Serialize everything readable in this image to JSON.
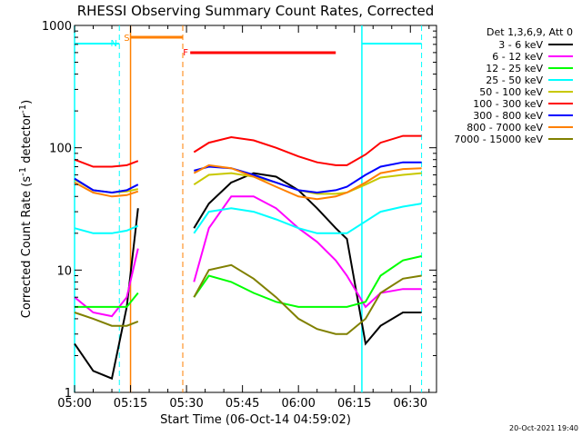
{
  "chart_data": {
    "type": "line",
    "title": "RHESSI Observing Summary Count Rates, Corrected",
    "xlabel": "Start Time (06-Oct-14 04:59:02)",
    "ylabel": "Corrected Count Rate (s^-1 detector^-1)",
    "y_scale": "log",
    "ylim": [
      1,
      1000
    ],
    "xlim": [
      "05:00",
      "06:37"
    ],
    "x_ticks": [
      "05:00",
      "05:15",
      "05:30",
      "05:45",
      "06:00",
      "06:15",
      "06:30"
    ],
    "y_ticks": [
      "1",
      "10",
      "100",
      "1000"
    ],
    "legend_header": "Det 1,3,6,9, Att 0",
    "legend_position": "right",
    "timestamp": "20-Oct-2021 19:40",
    "flags": [
      {
        "label": "N",
        "color": "#00ffff"
      },
      {
        "label": "S",
        "color": "#ff8000"
      },
      {
        "label": "F",
        "color": "#ff0000"
      }
    ],
    "series": [
      {
        "name": "3 - 6 keV",
        "color": "#000000",
        "x": [
          "05:00",
          "05:05",
          "05:10",
          "05:14",
          "05:17",
          "05:30",
          "05:32",
          "05:36",
          "05:42",
          "05:48",
          "05:54",
          "06:00",
          "06:05",
          "06:10",
          "06:13",
          "06:18",
          "06:22",
          "06:28",
          "06:33"
        ],
        "y": [
          2.5,
          1.5,
          1.3,
          5,
          32,
          null,
          22,
          35,
          52,
          62,
          58,
          45,
          32,
          22,
          18,
          2.5,
          3.5,
          4.5,
          4.5
        ]
      },
      {
        "name": "6 - 12 keV",
        "color": "#ff00ff",
        "x": [
          "05:00",
          "05:05",
          "05:10",
          "05:14",
          "05:17",
          "05:30",
          "05:32",
          "05:36",
          "05:42",
          "05:48",
          "05:54",
          "06:00",
          "06:05",
          "06:10",
          "06:13",
          "06:18",
          "06:22",
          "06:28",
          "06:33"
        ],
        "y": [
          6,
          4.5,
          4.2,
          6,
          15,
          null,
          8,
          22,
          40,
          40,
          32,
          22,
          17,
          12,
          9,
          5,
          6.5,
          7,
          7
        ]
      },
      {
        "name": "12 - 25 keV",
        "color": "#00ff00",
        "x": [
          "05:00",
          "05:05",
          "05:10",
          "05:14",
          "05:17",
          "05:30",
          "05:32",
          "05:36",
          "05:42",
          "05:48",
          "05:54",
          "06:00",
          "06:05",
          "06:10",
          "06:13",
          "06:18",
          "06:22",
          "06:28",
          "06:33"
        ],
        "y": [
          5,
          5,
          5,
          5,
          6.5,
          null,
          6,
          9,
          8,
          6.5,
          5.5,
          5,
          5,
          5,
          5,
          5.5,
          9,
          12,
          13
        ]
      },
      {
        "name": "25 - 50 keV",
        "color": "#00ffff",
        "x": [
          "05:00",
          "05:05",
          "05:10",
          "05:14",
          "05:17",
          "05:30",
          "05:32",
          "05:36",
          "05:42",
          "05:48",
          "05:54",
          "06:00",
          "06:05",
          "06:10",
          "06:13",
          "06:18",
          "06:22",
          "06:28",
          "06:33"
        ],
        "y": [
          22,
          20,
          20,
          21,
          23,
          null,
          20,
          30,
          32,
          30,
          26,
          22,
          20,
          20,
          20,
          25,
          30,
          33,
          35
        ]
      },
      {
        "name": "50 - 100 keV",
        "color": "#c8c800",
        "x": [
          "05:00",
          "05:05",
          "05:10",
          "05:14",
          "05:17",
          "05:30",
          "05:32",
          "05:36",
          "05:42",
          "05:48",
          "05:54",
          "06:00",
          "06:05",
          "06:10",
          "06:13",
          "06:18",
          "06:22",
          "06:28",
          "06:33"
        ],
        "y": [
          55,
          45,
          43,
          44,
          46,
          null,
          50,
          60,
          62,
          58,
          52,
          45,
          42,
          42,
          43,
          50,
          57,
          60,
          62
        ]
      },
      {
        "name": "100 - 300 keV",
        "color": "#ff0000",
        "x": [
          "05:00",
          "05:05",
          "05:10",
          "05:14",
          "05:17",
          "05:30",
          "05:32",
          "05:36",
          "05:42",
          "05:48",
          "05:54",
          "06:00",
          "06:05",
          "06:10",
          "06:13",
          "06:18",
          "06:22",
          "06:28",
          "06:33"
        ],
        "y": [
          80,
          70,
          70,
          72,
          78,
          null,
          92,
          110,
          122,
          115,
          100,
          85,
          76,
          72,
          72,
          88,
          110,
          125,
          125
        ]
      },
      {
        "name": "300 - 800 keV",
        "color": "#0000ff",
        "x": [
          "05:00",
          "05:05",
          "05:10",
          "05:14",
          "05:17",
          "05:30",
          "05:32",
          "05:36",
          "05:42",
          "05:48",
          "05:54",
          "06:00",
          "06:05",
          "06:10",
          "06:13",
          "06:18",
          "06:22",
          "06:28",
          "06:33"
        ],
        "y": [
          56,
          45,
          43,
          45,
          50,
          null,
          65,
          70,
          68,
          60,
          52,
          45,
          43,
          45,
          48,
          60,
          70,
          76,
          76
        ]
      },
      {
        "name": "800 - 7000 keV",
        "color": "#ff8000",
        "x": [
          "05:00",
          "05:05",
          "05:10",
          "05:14",
          "05:17",
          "05:30",
          "05:32",
          "05:36",
          "05:42",
          "05:48",
          "05:54",
          "06:00",
          "06:05",
          "06:10",
          "06:13",
          "06:18",
          "06:22",
          "06:28",
          "06:33"
        ],
        "y": [
          52,
          43,
          40,
          41,
          44,
          null,
          62,
          72,
          68,
          58,
          48,
          40,
          38,
          40,
          43,
          52,
          62,
          67,
          68
        ]
      },
      {
        "name": "7000 - 15000 keV",
        "color": "#808000",
        "x": [
          "05:00",
          "05:05",
          "05:10",
          "05:14",
          "05:17",
          "05:30",
          "05:32",
          "05:36",
          "05:42",
          "05:48",
          "05:54",
          "06:00",
          "06:05",
          "06:10",
          "06:13",
          "06:18",
          "06:22",
          "06:28",
          "06:33"
        ],
        "y": [
          4.5,
          4,
          3.5,
          3.5,
          3.8,
          null,
          6,
          10,
          11,
          8.5,
          6,
          4,
          3.3,
          3,
          3,
          4,
          6.5,
          8.5,
          9
        ]
      }
    ]
  }
}
